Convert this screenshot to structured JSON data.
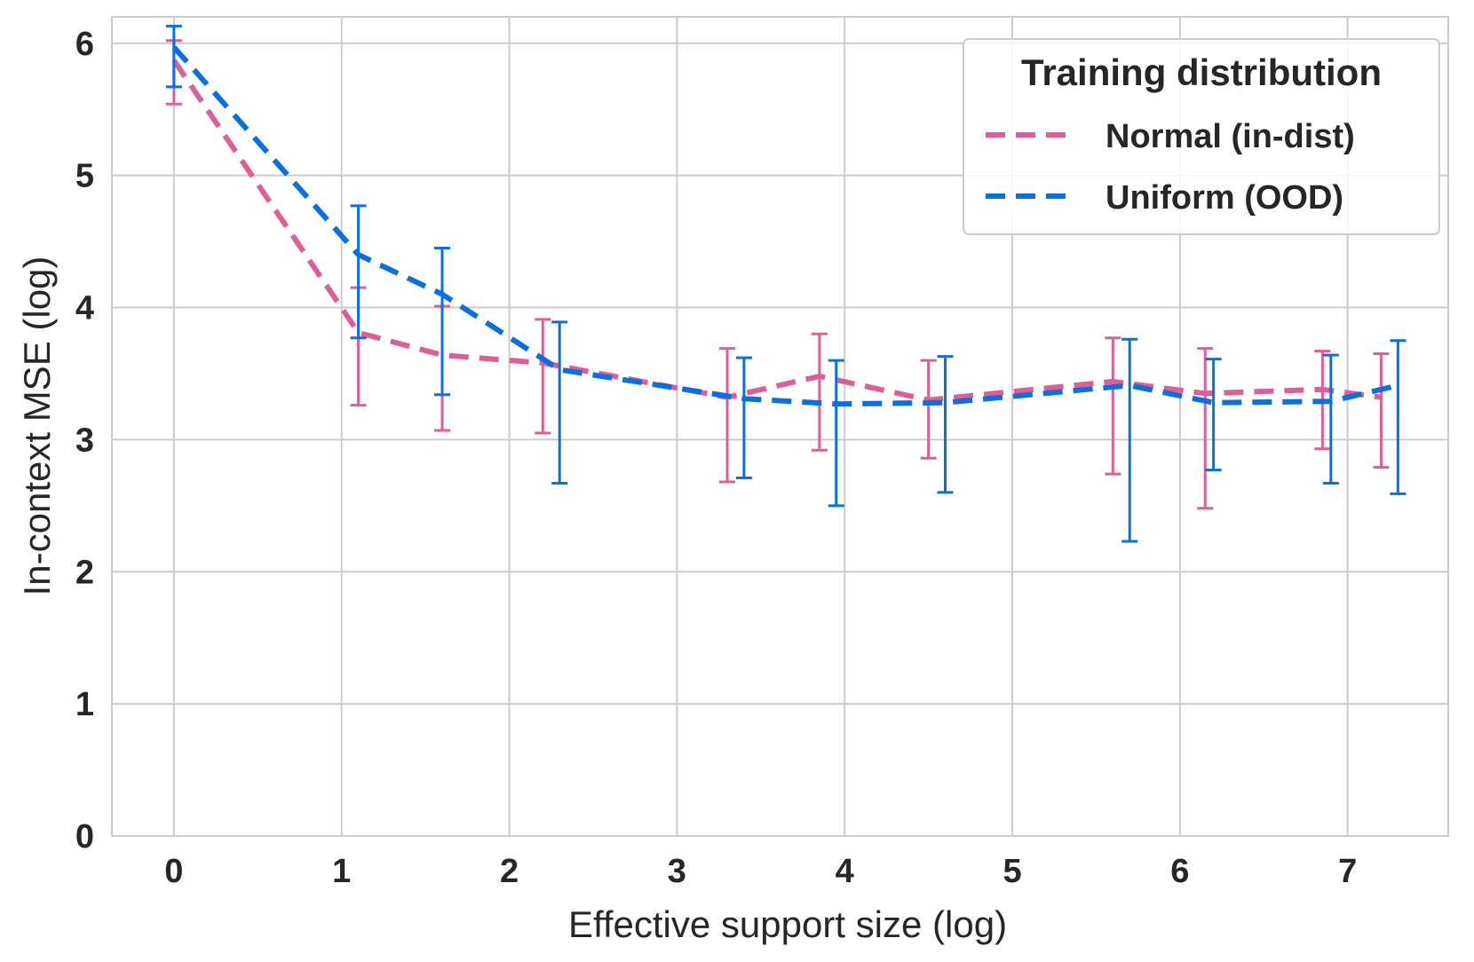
{
  "chart_data": {
    "type": "line",
    "title": "",
    "xlabel": "Effective support size (log)",
    "ylabel": "In-context MSE (log)",
    "xlim": [
      -0.37,
      7.6
    ],
    "ylim": [
      0,
      6.2
    ],
    "xticks": [
      0,
      1,
      2,
      3,
      4,
      5,
      6,
      7
    ],
    "yticks": [
      0,
      1,
      2,
      3,
      4,
      5,
      6
    ],
    "grid": true,
    "legend": {
      "title": "Training distribution",
      "position": "top-right"
    },
    "series": [
      {
        "name": "Normal (in-dist)",
        "color": "#DD5E98",
        "x": [
          0.0,
          1.1,
          1.6,
          2.2,
          3.3,
          3.85,
          4.5,
          5.6,
          6.15,
          6.85,
          7.2
        ],
        "y": [
          5.87,
          3.81,
          3.64,
          3.58,
          3.32,
          3.48,
          3.3,
          3.44,
          3.35,
          3.38,
          3.32
        ],
        "err_low": [
          5.54,
          3.26,
          3.07,
          3.05,
          2.68,
          2.92,
          2.86,
          2.74,
          2.48,
          2.93,
          2.79
        ],
        "err_high": [
          6.02,
          4.15,
          4.01,
          3.91,
          3.69,
          3.8,
          3.6,
          3.77,
          3.69,
          3.67,
          3.65
        ]
      },
      {
        "name": "Uniform (OOD)",
        "color": "#0A6FE0",
        "x": [
          0.0,
          1.1,
          1.6,
          2.3,
          3.4,
          3.95,
          4.6,
          5.7,
          6.2,
          6.9,
          7.3
        ],
        "y": [
          5.97,
          4.4,
          4.1,
          3.53,
          3.31,
          3.27,
          3.28,
          3.41,
          3.28,
          3.29,
          3.41
        ],
        "err_low": [
          5.67,
          3.77,
          3.34,
          2.67,
          2.71,
          2.5,
          2.6,
          2.23,
          2.77,
          2.67,
          2.59
        ],
        "err_high": [
          6.13,
          4.77,
          4.45,
          3.89,
          3.62,
          3.6,
          3.63,
          3.76,
          3.61,
          3.64,
          3.75
        ]
      }
    ]
  }
}
